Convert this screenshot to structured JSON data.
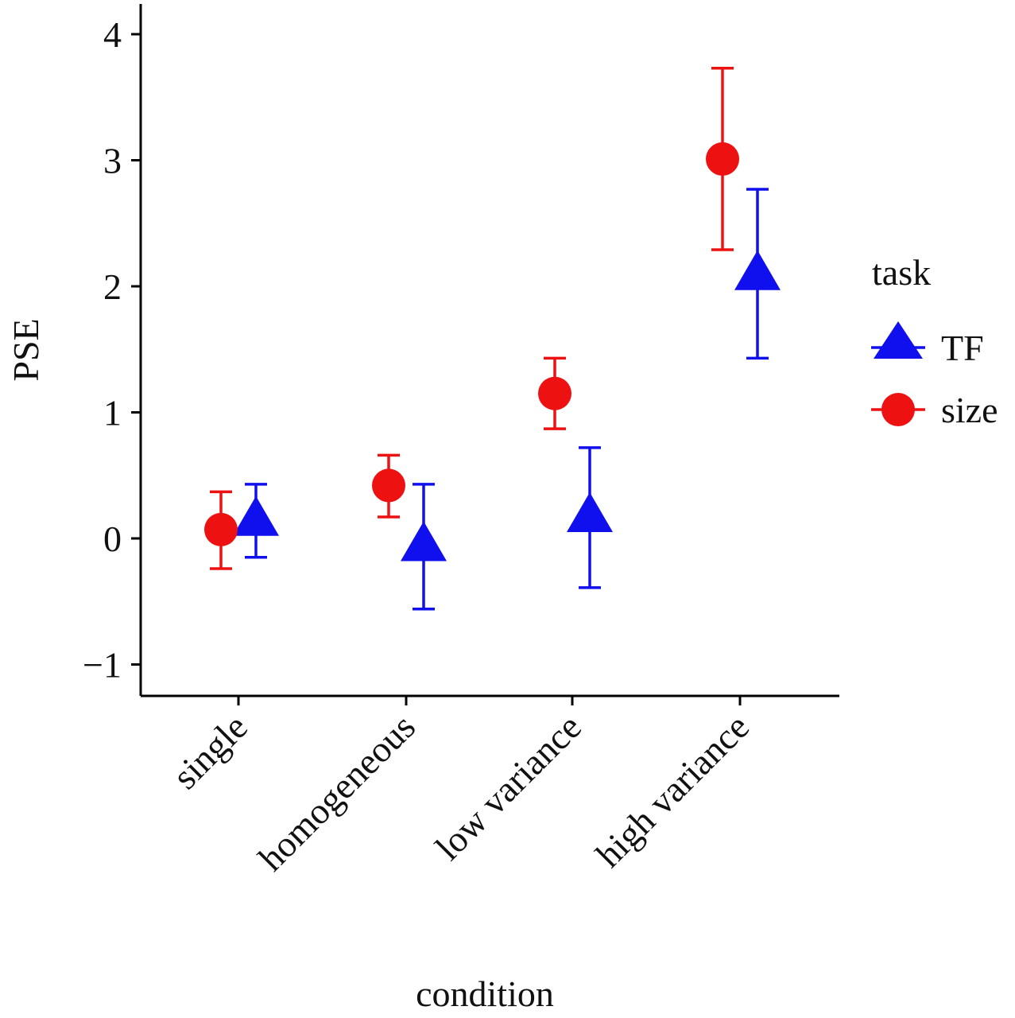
{
  "chart_data": {
    "type": "scatter",
    "title": "",
    "xlabel": "condition",
    "ylabel": "PSE",
    "categories": [
      "single",
      "homogeneous",
      "low variance",
      "high variance"
    ],
    "ylim": [
      -1.25,
      4.25
    ],
    "yticks": [
      -1,
      0,
      1,
      2,
      3,
      4
    ],
    "ytick_labels": [
      "−1",
      "0",
      "1",
      "2",
      "3",
      "4"
    ],
    "grid": false,
    "legend": {
      "title": "task",
      "position": "right"
    },
    "series": [
      {
        "name": "TF",
        "marker": "triangle",
        "color": "#1010ee",
        "values": [
          0.14,
          -0.06,
          0.17,
          2.09
        ],
        "err_low": [
          -0.15,
          -0.56,
          -0.39,
          1.43
        ],
        "err_high": [
          0.43,
          0.43,
          0.72,
          2.77
        ]
      },
      {
        "name": "size",
        "marker": "circle",
        "color": "#ee1111",
        "values": [
          0.07,
          0.42,
          1.15,
          3.01
        ],
        "err_low": [
          -0.24,
          0.17,
          0.87,
          2.29
        ],
        "err_high": [
          0.37,
          0.66,
          1.43,
          3.73
        ]
      }
    ]
  }
}
